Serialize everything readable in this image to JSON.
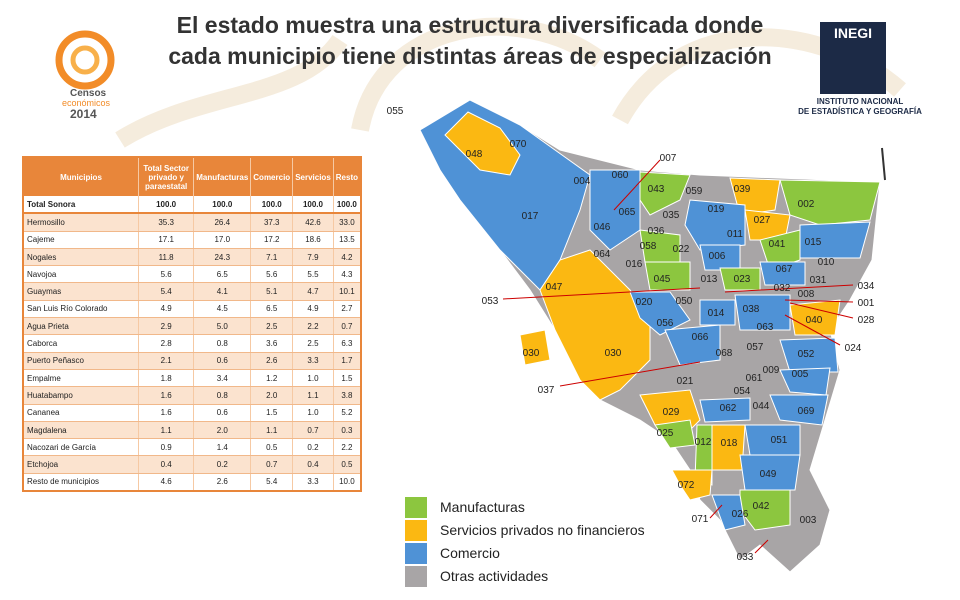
{
  "title": [
    "El estado muestra una estructura diversificada  donde",
    "cada municipio tiene distintas áreas de especialización"
  ],
  "logo_left": {
    "line1": "Censos",
    "line2": "económicos",
    "line3": "2014"
  },
  "logo_right": {
    "brand": "INEGI",
    "line1": "INSTITUTO NACIONAL",
    "line2": "DE ESTADÍSTICA Y GEOGRAFÍA"
  },
  "table": {
    "header": [
      "Municipios",
      "Total Sector privado y paraestatal",
      "Manufacturas",
      "Comercio",
      "Servicios",
      "Resto"
    ],
    "rows": [
      [
        "Total Sonora",
        "100.0",
        "100.0",
        "100.0",
        "100.0",
        "100.0"
      ],
      [
        "Hermosillo",
        "35.3",
        "26.4",
        "37.3",
        "42.6",
        "33.0"
      ],
      [
        "Cajeme",
        "17.1",
        "17.0",
        "17.2",
        "18.6",
        "13.5"
      ],
      [
        "Nogales",
        "11.8",
        "24.3",
        "7.1",
        "7.9",
        "4.2"
      ],
      [
        "Navojoa",
        "5.6",
        "6.5",
        "5.6",
        "5.5",
        "4.3"
      ],
      [
        "Guaymas",
        "5.4",
        "4.1",
        "5.1",
        "4.7",
        "10.1"
      ],
      [
        "San Luis Río Colorado",
        "4.9",
        "4.5",
        "6.5",
        "4.9",
        "2.7"
      ],
      [
        "Agua Prieta",
        "2.9",
        "5.0",
        "2.5",
        "2.2",
        "0.7"
      ],
      [
        "Caborca",
        "2.8",
        "0.8",
        "3.6",
        "2.5",
        "6.3"
      ],
      [
        "Puerto Peñasco",
        "2.1",
        "0.6",
        "2.6",
        "3.3",
        "1.7"
      ],
      [
        "Empalme",
        "1.8",
        "3.4",
        "1.2",
        "1.0",
        "1.5"
      ],
      [
        "Huatabampo",
        "1.6",
        "0.8",
        "2.0",
        "1.1",
        "3.8"
      ],
      [
        "Cananea",
        "1.6",
        "0.6",
        "1.5",
        "1.0",
        "5.2"
      ],
      [
        "Magdalena",
        "1.1",
        "2.0",
        "1.1",
        "0.7",
        "0.3"
      ],
      [
        "Nacozari de García",
        "0.9",
        "1.4",
        "0.5",
        "0.2",
        "2.2"
      ],
      [
        "Etchojoa",
        "0.4",
        "0.2",
        "0.7",
        "0.4",
        "0.5"
      ],
      [
        "Resto de municipios",
        "4.6",
        "2.6",
        "5.4",
        "3.3",
        "10.0"
      ]
    ]
  },
  "map": {
    "labels": [
      "055",
      "070",
      "048",
      "007",
      "060",
      "004",
      "043",
      "059",
      "039",
      "002",
      "017",
      "065",
      "035",
      "019",
      "027",
      "046",
      "036",
      "011",
      "041",
      "015",
      "058",
      "022",
      "064",
      "006",
      "016",
      "010",
      "067",
      "045",
      "013",
      "023",
      "031",
      "047",
      "034",
      "032",
      "008",
      "053",
      "020",
      "050",
      "001",
      "014",
      "038",
      "040",
      "028",
      "056",
      "063",
      "066",
      "057",
      "024",
      "030",
      "030",
      "068",
      "052",
      "009",
      "005",
      "061",
      "021",
      "037",
      "054",
      "044",
      "062",
      "069",
      "029",
      "025",
      "012",
      "018",
      "051",
      "049",
      "072",
      "042",
      "071",
      "026",
      "003",
      "033"
    ]
  },
  "legend": [
    {
      "label": "Manufacturas",
      "color": "#8cc63f"
    },
    {
      "label": "Servicios privados no financieros",
      "color": "#fbb812"
    },
    {
      "label": "Comercio",
      "color": "#4f92d6"
    },
    {
      "label": "Otras  actividades",
      "color": "#a8a5a6"
    }
  ]
}
